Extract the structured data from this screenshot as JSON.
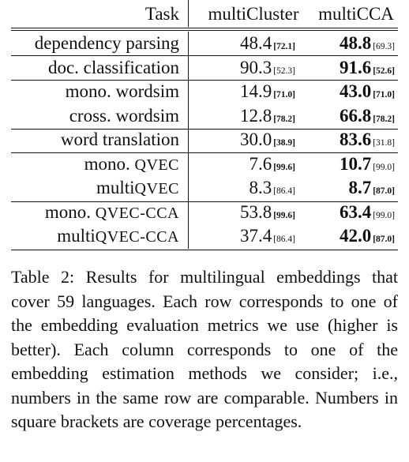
{
  "table": {
    "header": {
      "task": "Task",
      "col1": "multiCluster",
      "col2": "multiCCA"
    },
    "rows": [
      {
        "task": "dependency parsing",
        "task_sc": "",
        "v1": "48.4",
        "c1": "[72.1]",
        "c1_bold": true,
        "v2": "48.8",
        "c2": "[69.3]",
        "c2_bold": false,
        "bold_col": 2
      },
      {
        "task": "doc. classification",
        "task_sc": "",
        "v1": "90.3",
        "c1": "[52.3]",
        "c1_bold": false,
        "v2": "91.6",
        "c2": "[52.6]",
        "c2_bold": true,
        "bold_col": 2
      },
      {
        "task": "mono. wordsim",
        "task_sc": "",
        "v1": "14.9",
        "c1": "[71.0]",
        "c1_bold": true,
        "v2": "43.0",
        "c2": "[71.0]",
        "c2_bold": true,
        "bold_col": 2
      },
      {
        "task": "cross. wordsim",
        "task_sc": "",
        "v1": "12.8",
        "c1": "[78.2]",
        "c1_bold": true,
        "v2": "66.8",
        "c2": "[78.2]",
        "c2_bold": true,
        "bold_col": 2
      },
      {
        "task": "word translation",
        "task_sc": "",
        "v1": "30.0",
        "c1": "[38.9]",
        "c1_bold": true,
        "v2": "83.6",
        "c2": "[31.8]",
        "c2_bold": false,
        "bold_col": 2
      },
      {
        "task": "mono. ",
        "task_sc": "QVEC",
        "v1": "7.6",
        "c1": "[99.6]",
        "c1_bold": true,
        "v2": "10.7",
        "c2": "[99.0]",
        "c2_bold": false,
        "bold_col": 2
      },
      {
        "task": "multi",
        "task_sc": "QVEC",
        "v1": "8.3",
        "c1": "[86.4]",
        "c1_bold": false,
        "v2": "8.7",
        "c2": "[87.0]",
        "c2_bold": true,
        "bold_col": 2
      },
      {
        "task": "mono. ",
        "task_sc": "QVEC-CCA",
        "v1": "53.8",
        "c1": "[99.6]",
        "c1_bold": true,
        "v2": "63.4",
        "c2": "[99.0]",
        "c2_bold": false,
        "bold_col": 2
      },
      {
        "task": "multi",
        "task_sc": "QVEC-CCA",
        "v1": "37.4",
        "c1": "[86.4]",
        "c1_bold": false,
        "v2": "42.0",
        "c2": "[87.0]",
        "c2_bold": true,
        "bold_col": 2
      }
    ]
  },
  "caption": "Table 2: Results for multilingual embeddings that cover 59 languages. Each row corresponds to one of the embedding evaluation metrics we use (higher is better). Each column corresponds to one of the embedding estimation methods we consider; i.e., numbers in the same row are comparable. Numbers in square brackets are coverage percentages."
}
